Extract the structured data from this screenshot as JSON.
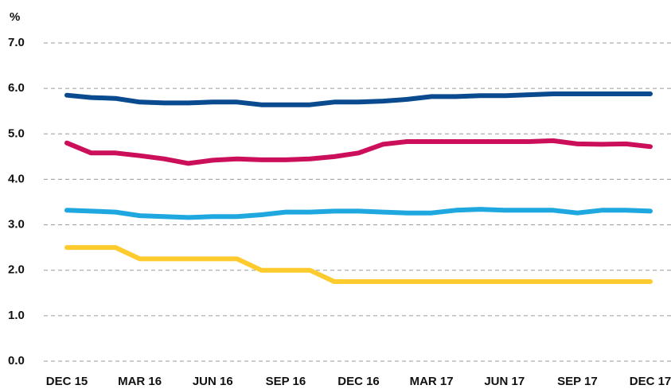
{
  "chart_data": {
    "type": "line",
    "y_label": "%",
    "categories": [
      "DEC 15",
      null,
      null,
      "MAR 16",
      null,
      null,
      "JUN 16",
      null,
      null,
      "SEP 16",
      null,
      null,
      "DEC 16",
      null,
      null,
      "MAR 17",
      null,
      null,
      "JUN 17",
      null,
      null,
      "SEP 17",
      null,
      null,
      "DEC 17"
    ],
    "series": [
      {
        "color": "#0a4a8f",
        "values": [
          5.85,
          5.8,
          5.78,
          5.7,
          5.68,
          5.68,
          5.7,
          5.7,
          5.64,
          5.64,
          5.64,
          5.7,
          5.7,
          5.72,
          5.76,
          5.82,
          5.82,
          5.84,
          5.84,
          5.86,
          5.88,
          5.88,
          5.88,
          5.88,
          5.88
        ]
      },
      {
        "color": "#cc0f5a",
        "values": [
          4.8,
          4.58,
          4.58,
          4.52,
          4.45,
          4.35,
          4.42,
          4.45,
          4.43,
          4.43,
          4.45,
          4.5,
          4.58,
          4.77,
          4.83,
          4.83,
          4.83,
          4.83,
          4.83,
          4.83,
          4.85,
          4.78,
          4.77,
          4.78,
          4.72
        ]
      },
      {
        "color": "#1fa7e0",
        "values": [
          3.32,
          3.3,
          3.28,
          3.2,
          3.18,
          3.16,
          3.18,
          3.18,
          3.22,
          3.28,
          3.28,
          3.3,
          3.3,
          3.28,
          3.26,
          3.26,
          3.32,
          3.34,
          3.32,
          3.32,
          3.32,
          3.26,
          3.32,
          3.32,
          3.3
        ]
      },
      {
        "color": "#fdcb2e",
        "values": [
          2.5,
          2.5,
          2.5,
          2.25,
          2.25,
          2.25,
          2.25,
          2.25,
          2.0,
          2.0,
          2.0,
          1.75,
          1.75,
          1.75,
          1.75,
          1.75,
          1.75,
          1.75,
          1.75,
          1.75,
          1.75,
          1.75,
          1.75,
          1.75,
          1.75
        ]
      }
    ],
    "ylim": [
      0,
      7
    ],
    "yticks": [
      {
        "value": 0,
        "label": "0.0"
      },
      {
        "value": 1,
        "label": "1.0"
      },
      {
        "value": 2,
        "label": "2.0"
      },
      {
        "value": 3,
        "label": "3.0"
      },
      {
        "value": 4,
        "label": "4.0"
      },
      {
        "value": 5,
        "label": "5.0"
      },
      {
        "value": 6,
        "label": "6.0"
      },
      {
        "value": 7,
        "label": "7.0"
      }
    ],
    "grid": true
  }
}
